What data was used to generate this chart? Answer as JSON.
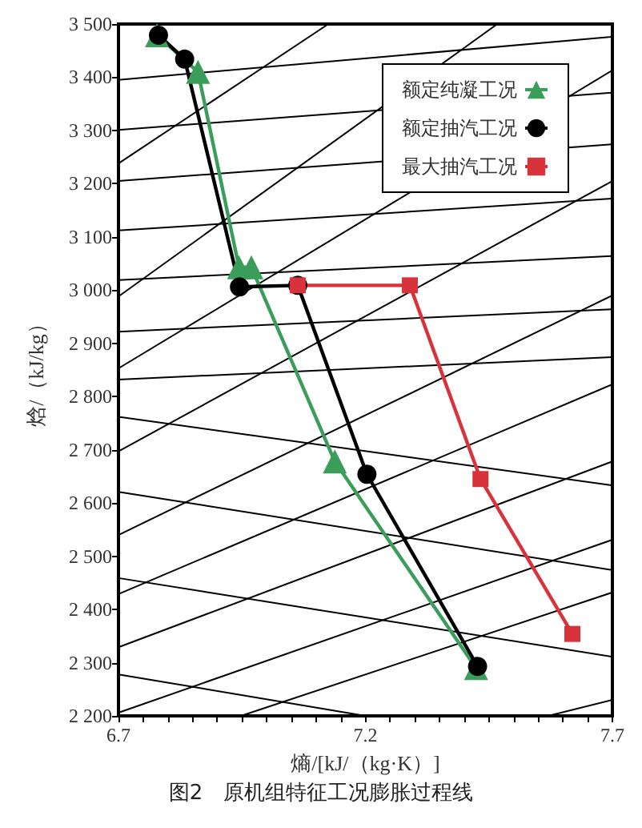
{
  "chart_data": {
    "type": "line",
    "title": "图2　原机组特征工况膨胀过程线",
    "xlabel": "熵/[kJ/（kg·K）]",
    "ylabel": "焓/（kJ/kg）",
    "xlim": [
      6.7,
      7.7
    ],
    "ylim": [
      2200,
      3500
    ],
    "xticks": [
      6.7,
      {
        "value": 6.75,
        "label": null
      },
      {
        "value": 6.8,
        "label": null
      },
      {
        "value": 6.85,
        "label": null
      },
      {
        "value": 6.9,
        "label": null
      },
      {
        "value": 6.95,
        "label": null
      },
      {
        "value": 7.0,
        "label": null
      },
      {
        "value": 7.05,
        "label": null
      },
      {
        "value": 7.1,
        "label": null
      },
      {
        "value": 7.15,
        "label": null
      },
      7.2,
      {
        "value": 7.25,
        "label": null
      },
      {
        "value": 7.3,
        "label": null
      },
      {
        "value": 7.35,
        "label": null
      },
      {
        "value": 7.4,
        "label": null
      },
      {
        "value": 7.45,
        "label": null
      },
      {
        "value": 7.5,
        "label": null
      },
      {
        "value": 7.55,
        "label": null
      },
      {
        "value": 7.6,
        "label": null
      },
      {
        "value": 7.65,
        "label": null
      },
      7.7
    ],
    "yticks": [
      {
        "value": 2200,
        "label": "2 200"
      },
      {
        "value": 2300,
        "label": "2 300"
      },
      {
        "value": 2400,
        "label": "2 400"
      },
      {
        "value": 2500,
        "label": "2 500"
      },
      {
        "value": 2600,
        "label": "2 600"
      },
      {
        "value": 2700,
        "label": "2 700"
      },
      {
        "value": 2800,
        "label": "2 800"
      },
      {
        "value": 2900,
        "label": "2 900"
      },
      {
        "value": 3000,
        "label": "3 000"
      },
      {
        "value": 3100,
        "label": "3 100"
      },
      {
        "value": 3200,
        "label": "3 200"
      },
      {
        "value": 3300,
        "label": "3 300"
      },
      {
        "value": 3400,
        "label": "3 400"
      },
      {
        "value": 3500,
        "label": "3 500"
      }
    ],
    "grid": false,
    "legend": "top right",
    "series": [
      {
        "color": "#000000",
        "marker": "none",
        "x": [
          6.7,
          7.7
        ],
        "values": [
          3395,
          3476
        ]
      },
      {
        "color": "#000000",
        "marker": "none",
        "x": [
          6.7,
          7.7
        ],
        "values": [
          3301,
          3371
        ]
      },
      {
        "color": "#000000",
        "marker": "none",
        "x": [
          6.7,
          7.7
        ],
        "values": [
          3205,
          3274
        ]
      },
      {
        "color": "#000000",
        "marker": "none",
        "x": [
          6.7,
          7.7
        ],
        "values": [
          3112,
          3172
        ]
      },
      {
        "color": "#000000",
        "marker": "none",
        "x": [
          6.7,
          7.7
        ],
        "values": [
          3019,
          3064
        ]
      },
      {
        "color": "#000000",
        "marker": "none",
        "x": [
          6.7,
          7.7
        ],
        "values": [
          2922,
          2964
        ]
      },
      {
        "color": "#000000",
        "marker": "none",
        "x": [
          6.7,
          7.7
        ],
        "values": [
          2832,
          2874
        ]
      },
      {
        "color": "#000000",
        "marker": "none",
        "x": [
          6.7,
          7.7
        ],
        "values": [
          2762,
          2633
        ]
      },
      {
        "color": "#000000",
        "marker": "none",
        "x": [
          6.7,
          7.7
        ],
        "values": [
          2621,
          2474
        ]
      },
      {
        "color": "#000000",
        "marker": "none",
        "x": [
          6.7,
          7.7
        ],
        "values": [
          2459,
          2311
        ]
      },
      {
        "color": "#000000",
        "marker": "none",
        "x": [
          6.7,
          7.2
        ],
        "values": [
          2278,
          2200
        ]
      },
      {
        "color": "#000000",
        "marker": "none",
        "x": [
          6.7,
          7.125
        ],
        "values": [
          3238,
          3500
        ]
      },
      {
        "color": "#000000",
        "marker": "none",
        "x": [
          6.7,
          7.467
        ],
        "values": [
          2988,
          3500
        ]
      },
      {
        "color": "#000000",
        "marker": "none",
        "x": [
          6.7,
          7.7
        ],
        "values": [
          2853,
          3413
        ]
      },
      {
        "color": "#000000",
        "marker": "none",
        "x": [
          6.7,
          7.7
        ],
        "values": [
          2697,
          3205
        ]
      },
      {
        "color": "#000000",
        "marker": "none",
        "x": [
          6.7,
          7.7
        ],
        "values": [
          2540,
          2990
        ]
      },
      {
        "color": "#000000",
        "marker": "none",
        "x": [
          6.7,
          7.7
        ],
        "values": [
          2429,
          2823
        ]
      },
      {
        "color": "#000000",
        "marker": "none",
        "x": [
          6.7,
          7.7
        ],
        "values": [
          2329,
          2678
        ]
      },
      {
        "color": "#000000",
        "marker": "none",
        "x": [
          6.7,
          7.7
        ],
        "values": [
          2206,
          2531
        ]
      },
      {
        "color": "#000000",
        "marker": "none",
        "x": [
          6.948,
          7.7
        ],
        "values": [
          2200,
          2432
        ]
      },
      {
        "color": "#000000",
        "marker": "none",
        "x": [
          7.57,
          7.7
        ],
        "values": [
          2200,
          2230
        ]
      },
      {
        "name": "额定纯凝工况",
        "color": "#3a9e5a",
        "marker": "triangle",
        "x": [
          6.778,
          6.861,
          6.944,
          6.969,
          7.138,
          7.424
        ],
        "values": [
          3479,
          3410,
          3043,
          3043,
          2678,
          2290
        ]
      },
      {
        "name": "额定抽汽工况",
        "color": "#000000",
        "marker": "circle",
        "x": [
          6.781,
          6.834,
          6.945,
          7.063,
          7.203,
          7.427
        ],
        "values": [
          3479,
          3434,
          3006,
          3009,
          2654,
          2293
        ]
      },
      {
        "name": "最大抽汽工况",
        "color": "#d8323a",
        "marker": "square",
        "x": [
          7.063,
          7.29,
          7.433,
          7.619
        ],
        "values": [
          3009,
          3009,
          2645,
          2354
        ]
      }
    ]
  }
}
